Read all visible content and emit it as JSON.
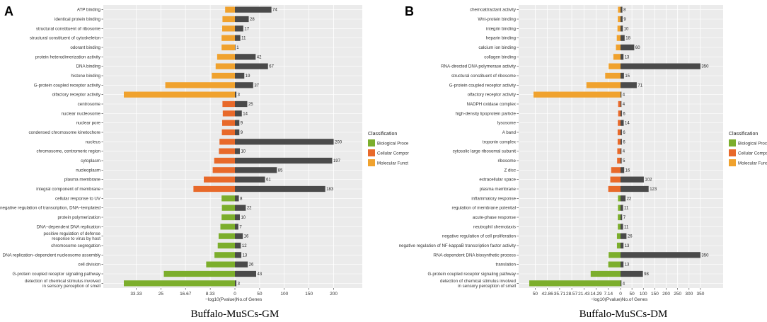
{
  "legend_title": "Classification",
  "chart_data": [
    {
      "type": "bar",
      "panel_label": "A",
      "caption": "Buffalo-MuSCs-GM",
      "x_left_label": "−log10(Pvalue)",
      "x_right_label": "No.of Genes",
      "left_ticks": [
        33.33,
        25,
        16.67,
        8.33,
        0
      ],
      "left_tick_labels": [
        "33.33",
        "25",
        "16.67",
        "8.33",
        "0"
      ],
      "left_max": 37.5,
      "right_ticks": [
        50,
        100,
        150,
        200
      ],
      "right_max": 225,
      "legend": [
        {
          "name": "Biological Proce",
          "color": "#7cae2c"
        },
        {
          "name": "Cellular Compor",
          "color": "#e8692a"
        },
        {
          "name": "Molecular Funct",
          "color": "#f0a22e"
        }
      ],
      "categories": [
        "ATP binding",
        "identical protein binding",
        "structural constituent of ribosome",
        "structural constituent of cytoskeleton",
        "odorant binding",
        "protein heterodimerization activity",
        "DNA binding",
        "histone binding",
        "G-protein coupled receptor activity",
        "olfactory receptor activity",
        "centrosome",
        "nuclear nucleosome",
        "nuclear pore",
        "condensed chromosome kinetochore",
        "nucleus",
        "chromosome, centromeric region",
        "cytoplasm",
        "nucleoplasm",
        "plasma membrane",
        "integral component of membrane",
        "cellular response to UV",
        "negative regulation of transcription, DNA−templated",
        "protein polymerization",
        "DNA−dependent DNA replication",
        "positive regulation of defense\nresponse to virus by host",
        "chromosome segregation",
        "DNA replication−dependent nucleosome assembly",
        "cell division",
        "G-protein coupled receptor signaling pathway",
        "detection of chemical stimulus involved\nin sensory perception of smell"
      ],
      "classes": [
        "M",
        "M",
        "M",
        "M",
        "M",
        "M",
        "M",
        "M",
        "M",
        "M",
        "C",
        "C",
        "C",
        "C",
        "C",
        "C",
        "C",
        "C",
        "C",
        "C",
        "B",
        "B",
        "B",
        "B",
        "B",
        "B",
        "B",
        "B",
        "B",
        "B"
      ],
      "log_p": [
        3.3,
        4.2,
        4.3,
        4.5,
        4.5,
        6,
        6.5,
        7.8,
        23.5,
        37.5,
        4.2,
        4.1,
        4.3,
        4.4,
        5.2,
        5.4,
        7,
        7.5,
        10.5,
        14,
        4.5,
        4.4,
        4.5,
        4.9,
        5.5,
        5.8,
        6.9,
        9.7,
        24,
        37.5
      ],
      "gene_counts": [
        74,
        28,
        17,
        11,
        1,
        42,
        67,
        19,
        37,
        3,
        25,
        14,
        9,
        9,
        200,
        10,
        197,
        85,
        61,
        183,
        8,
        22,
        10,
        7,
        16,
        12,
        13,
        26,
        43,
        3
      ],
      "count_labels": [
        "74",
        "28",
        "17",
        "11",
        "1",
        "42",
        "67",
        "19",
        "37",
        "3",
        "25",
        "14",
        "9",
        "9",
        "200",
        "10",
        "197",
        "85",
        "61",
        "183",
        "8",
        "22",
        "10",
        "7",
        "16",
        "12",
        "13",
        "26",
        "43",
        "3"
      ]
    },
    {
      "type": "bar",
      "panel_label": "B",
      "caption": "Buffalo-MuSCs-DM",
      "x_left_label": "−log10(Pvalue)",
      "x_right_label": "No.of Genes",
      "left_ticks": [
        50,
        42.86,
        35.71,
        28.57,
        21.43,
        14.29,
        7.14,
        0
      ],
      "left_tick_labels": [
        "50",
        "42.86",
        "35.71",
        "28.57",
        "21.43",
        "14.29",
        "7.14",
        "0"
      ],
      "left_max": 53.5,
      "right_ticks": [
        50,
        100,
        150,
        200,
        250,
        300,
        350
      ],
      "right_max": 375,
      "legend": [
        {
          "name": "Biological Process",
          "color": "#7cae2c"
        },
        {
          "name": "Cellular Component",
          "color": "#e8692a"
        },
        {
          "name": "Molecular Function",
          "color": "#f0a22e"
        }
      ],
      "categories": [
        "chemoattractant activity",
        "Wnt-protein binding",
        "integrin binding",
        "heparin binding",
        "calcium ion binding",
        "collagen binding",
        "RNA-directed DNA polymerase activity",
        "structural constituent of ribosome",
        "G-protein coupled receptor activity",
        "olfactory receptor activity",
        "NADPH oxidase complex",
        "high-density lipoprotein particle",
        "lysosome",
        "A band",
        "troponin complex",
        "cytosolic large ribosomal subunit",
        "ribosome",
        "Z disc",
        "extracellular space",
        "plasma membrane",
        "inflammatory response",
        "regulation of membrane potential",
        "acute-phase response",
        "neutrophil chemotaxis",
        "negative regulation of cell proliferation",
        "negative regulation of NF-kappaB transcription factor activity",
        "RNA-dependent DNA biosynthetic process",
        "translation",
        "G-protein coupled receptor signaling pathway",
        "detection of chemical stimulus involved\nin sensory perception of smell"
      ],
      "classes": [
        "M",
        "M",
        "M",
        "M",
        "M",
        "M",
        "M",
        "M",
        "M",
        "M",
        "C",
        "C",
        "C",
        "C",
        "C",
        "C",
        "C",
        "C",
        "C",
        "C",
        "B",
        "B",
        "B",
        "B",
        "B",
        "B",
        "B",
        "B",
        "B",
        "B"
      ],
      "log_p": [
        1.5,
        1.6,
        1.8,
        2.2,
        2.7,
        4.2,
        7,
        9,
        20,
        51,
        1.4,
        1.4,
        1.6,
        1.7,
        1.7,
        1.9,
        2,
        5.5,
        6,
        7.2,
        1.5,
        1.5,
        1.6,
        1.6,
        2.1,
        2.1,
        7,
        7.2,
        17.5,
        53.5
      ],
      "gene_counts": [
        8,
        9,
        10,
        18,
        60,
        13,
        350,
        15,
        71,
        4,
        4,
        6,
        14,
        6,
        6,
        4,
        5,
        16,
        102,
        123,
        22,
        11,
        7,
        11,
        26,
        13,
        350,
        13,
        98,
        4
      ],
      "count_labels": [
        "8",
        "9",
        "10",
        "18",
        "60",
        "13",
        "350",
        "15",
        "71",
        "4",
        "4",
        "6",
        "14",
        "6",
        "6",
        "4",
        "5",
        "16",
        "102",
        "123",
        "22",
        "11",
        "7",
        "11",
        "26",
        "13",
        "350",
        "13",
        "98",
        "4"
      ]
    }
  ]
}
